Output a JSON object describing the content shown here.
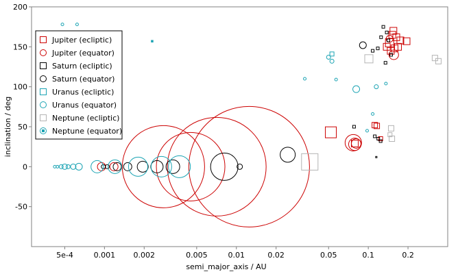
{
  "chart_data": {
    "type": "scatter",
    "xscale": "log",
    "xlim": [
      0.00028,
      0.4
    ],
    "ylim": [
      -100,
      200
    ],
    "xlabel": "semi_major_axis / AU",
    "ylabel": "inclination / deg",
    "x_ticks": [
      {
        "value": 0.0005,
        "label": "5e-4"
      },
      {
        "value": 0.001,
        "label": "0.001"
      },
      {
        "value": 0.002,
        "label": "0.002"
      },
      {
        "value": 0.005,
        "label": "0.005"
      },
      {
        "value": 0.01,
        "label": "0.01"
      },
      {
        "value": 0.02,
        "label": "0.02"
      },
      {
        "value": 0.05,
        "label": "0.05"
      },
      {
        "value": 0.1,
        "label": "0.1"
      },
      {
        "value": 0.2,
        "label": "0.2"
      }
    ],
    "y_ticks": [
      {
        "value": -50,
        "label": "-50"
      },
      {
        "value": 0,
        "label": "0"
      },
      {
        "value": 50,
        "label": "50"
      },
      {
        "value": 100,
        "label": "100"
      },
      {
        "value": 150,
        "label": "150"
      },
      {
        "value": 200,
        "label": "200"
      }
    ],
    "grid": false,
    "legend_position": "top-left",
    "legend": [
      {
        "label": "Jupiter (ecliptic)",
        "color": "#cc0000",
        "marker": "square"
      },
      {
        "label": "Jupiter (equator)",
        "color": "#cc0000",
        "marker": "circle"
      },
      {
        "label": "Saturn (ecliptic)",
        "color": "#000000",
        "marker": "square"
      },
      {
        "label": "Saturn (equator)",
        "color": "#000000",
        "marker": "circle"
      },
      {
        "label": "Uranus (ecliptic)",
        "color": "#1aa3b3",
        "marker": "square"
      },
      {
        "label": "Uranus (equator)",
        "color": "#1aa3b3",
        "marker": "circle"
      },
      {
        "label": "Neptune (ecliptic)",
        "color": "#b4b4b4",
        "marker": "square"
      },
      {
        "label": "Neptune (equator)",
        "color": "#1aa3b3",
        "marker": "dot-square"
      }
    ],
    "series": [
      {
        "name": "Jupiter (equator)",
        "color": "#cc0000",
        "marker": "circle",
        "points": [
          {
            "x": 0.00095,
            "y": 0,
            "s": 6
          },
          {
            "x": 0.00118,
            "y": 0,
            "s": 6
          },
          {
            "x": 0.0028,
            "y": 0,
            "s": 60
          },
          {
            "x": 0.0045,
            "y": 0,
            "s": 50
          },
          {
            "x": 0.0071,
            "y": 0,
            "s": 72
          },
          {
            "x": 0.0125,
            "y": 0,
            "s": 88
          },
          {
            "x": 0.077,
            "y": 30,
            "s": 12
          },
          {
            "x": 0.079,
            "y": 28,
            "s": 9
          },
          {
            "x": 0.081,
            "y": 29,
            "s": 7
          },
          {
            "x": 0.156,
            "y": 140,
            "s": 7
          },
          {
            "x": 0.145,
            "y": 160,
            "s": 5
          }
        ]
      },
      {
        "name": "Jupiter (ecliptic)",
        "color": "#cc0000",
        "marker": "square",
        "points": [
          {
            "x": 0.052,
            "y": 43,
            "s": 8
          },
          {
            "x": 0.079,
            "y": 29,
            "s": 5
          },
          {
            "x": 0.112,
            "y": 52,
            "s": 4
          },
          {
            "x": 0.116,
            "y": 51,
            "s": 4
          },
          {
            "x": 0.124,
            "y": 35,
            "s": 3
          },
          {
            "x": 0.138,
            "y": 150,
            "s": 5
          },
          {
            "x": 0.145,
            "y": 155,
            "s": 6
          },
          {
            "x": 0.152,
            "y": 165,
            "s": 5
          },
          {
            "x": 0.158,
            "y": 148,
            "s": 5
          },
          {
            "x": 0.163,
            "y": 162,
            "s": 5
          },
          {
            "x": 0.168,
            "y": 150,
            "s": 5
          },
          {
            "x": 0.175,
            "y": 158,
            "s": 5
          },
          {
            "x": 0.148,
            "y": 145,
            "s": 5
          },
          {
            "x": 0.155,
            "y": 170,
            "s": 5
          },
          {
            "x": 0.195,
            "y": 157,
            "s": 5
          }
        ]
      },
      {
        "name": "Saturn (equator)",
        "color": "#000000",
        "marker": "circle",
        "points": [
          {
            "x": 0.00098,
            "y": 0,
            "s": 3
          },
          {
            "x": 0.00105,
            "y": 0,
            "s": 3
          },
          {
            "x": 0.00125,
            "y": 0,
            "s": 6
          },
          {
            "x": 0.0015,
            "y": 0,
            "s": 6
          },
          {
            "x": 0.00195,
            "y": 0,
            "s": 8
          },
          {
            "x": 0.0025,
            "y": 0,
            "s": 9
          },
          {
            "x": 0.0033,
            "y": 0,
            "s": 10
          },
          {
            "x": 0.0081,
            "y": 0,
            "s": 20
          },
          {
            "x": 0.0106,
            "y": 0,
            "s": 4
          },
          {
            "x": 0.0245,
            "y": 15,
            "s": 11
          },
          {
            "x": 0.091,
            "y": 152,
            "s": 5
          }
        ]
      },
      {
        "name": "Saturn (ecliptic)",
        "color": "#000000",
        "marker": "square",
        "points": [
          {
            "x": 0.078,
            "y": 50,
            "s": 2
          },
          {
            "x": 0.112,
            "y": 38,
            "s": 2
          },
          {
            "x": 0.119,
            "y": 35,
            "s": 2
          },
          {
            "x": 0.124,
            "y": 32,
            "s": 2
          },
          {
            "x": 0.115,
            "y": 12,
            "s": 1
          },
          {
            "x": 0.13,
            "y": 175,
            "s": 2
          },
          {
            "x": 0.138,
            "y": 168,
            "s": 2
          },
          {
            "x": 0.142,
            "y": 158,
            "s": 2
          },
          {
            "x": 0.149,
            "y": 140,
            "s": 2
          },
          {
            "x": 0.135,
            "y": 130,
            "s": 2
          },
          {
            "x": 0.118,
            "y": 148,
            "s": 2
          },
          {
            "x": 0.125,
            "y": 162,
            "s": 2
          },
          {
            "x": 0.108,
            "y": 145,
            "s": 2
          }
        ]
      },
      {
        "name": "Uranus (equator)",
        "color": "#1aa3b3",
        "marker": "circle",
        "points": [
          {
            "x": 0.00042,
            "y": 0,
            "s": 2
          },
          {
            "x": 0.00044,
            "y": 0,
            "s": 2
          },
          {
            "x": 0.00047,
            "y": 0,
            "s": 3
          },
          {
            "x": 0.0005,
            "y": 0,
            "s": 4
          },
          {
            "x": 0.00053,
            "y": 0,
            "s": 3
          },
          {
            "x": 0.00058,
            "y": 0,
            "s": 4
          },
          {
            "x": 0.00064,
            "y": 0,
            "s": 5
          },
          {
            "x": 0.00088,
            "y": 0,
            "s": 9
          },
          {
            "x": 0.0012,
            "y": 0,
            "s": 10
          },
          {
            "x": 0.0018,
            "y": 0,
            "s": 14
          },
          {
            "x": 0.0027,
            "y": 0,
            "s": 15
          },
          {
            "x": 0.0037,
            "y": 0,
            "s": 16
          },
          {
            "x": 0.00048,
            "y": 178,
            "s": 2
          },
          {
            "x": 0.00062,
            "y": 178,
            "s": 2
          },
          {
            "x": 0.033,
            "y": 110,
            "s": 2
          },
          {
            "x": 0.05,
            "y": 137,
            "s": 3
          },
          {
            "x": 0.053,
            "y": 132,
            "s": 3
          },
          {
            "x": 0.057,
            "y": 109,
            "s": 2
          },
          {
            "x": 0.081,
            "y": 97,
            "s": 5
          },
          {
            "x": 0.115,
            "y": 100,
            "s": 3
          },
          {
            "x": 0.136,
            "y": 104,
            "s": 2
          },
          {
            "x": 0.108,
            "y": 66,
            "s": 2
          },
          {
            "x": 0.098,
            "y": 45,
            "s": 2
          }
        ]
      },
      {
        "name": "Uranus (ecliptic)",
        "color": "#1aa3b3",
        "marker": "square",
        "points": [
          {
            "x": 0.053,
            "y": 141,
            "s": 3
          }
        ]
      },
      {
        "name": "Neptune (ecliptic)",
        "color": "#b4b4b4",
        "marker": "square",
        "points": [
          {
            "x": 0.036,
            "y": 6,
            "s": 12
          },
          {
            "x": 0.101,
            "y": 135,
            "s": 6
          },
          {
            "x": 0.149,
            "y": 48,
            "s": 4
          },
          {
            "x": 0.151,
            "y": 35,
            "s": 4
          },
          {
            "x": 0.146,
            "y": 40,
            "s": 3
          },
          {
            "x": 0.32,
            "y": 136,
            "s": 4
          },
          {
            "x": 0.34,
            "y": 132,
            "s": 4
          }
        ]
      },
      {
        "name": "Neptune (equator)",
        "color": "#1aa3b3",
        "marker": "dot-square",
        "points": [
          {
            "x": 0.0023,
            "y": 157,
            "s": 1
          }
        ]
      }
    ]
  }
}
